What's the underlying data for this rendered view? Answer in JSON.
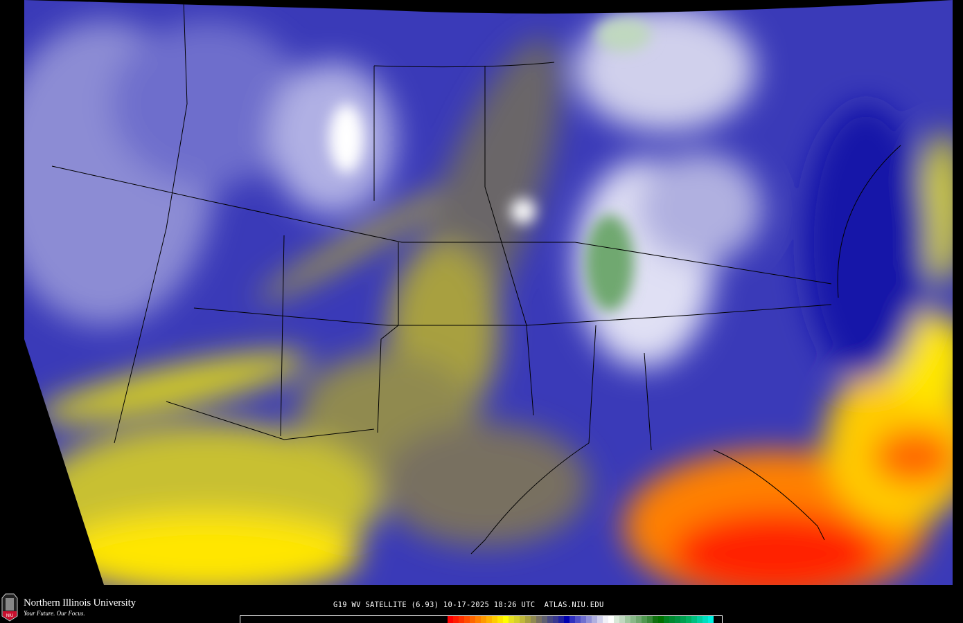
{
  "branding": {
    "university": "Northern Illinois University",
    "tagline": "Your Future. Our Focus.",
    "logo_text": "NIU"
  },
  "caption": "G19 WV SATELLITE (6.93) 10-17-2025 18:26 UTC  ATLAS.NIU.EDU",
  "colors": {
    "background": "#000000",
    "base_blue": "#3a3ab8",
    "dry_yellow": "#d8d020",
    "very_dry_red": "#ff2000",
    "cloud_white": "#f0f0ff",
    "cold_green": "#50a050"
  },
  "colorbar": [
    "#ff0000",
    "#ff1a00",
    "#ff3300",
    "#ff4d00",
    "#ff6600",
    "#ff8000",
    "#ff9900",
    "#ffb300",
    "#ffcc00",
    "#ffe600",
    "#ffff00",
    "#e6e020",
    "#d4d02a",
    "#c0b838",
    "#a8a040",
    "#908a50",
    "#787060",
    "#606070",
    "#484880",
    "#383890",
    "#2020a0",
    "#0000b0",
    "#3030c0",
    "#5050c8",
    "#7070d0",
    "#9090d8",
    "#b0b0e0",
    "#d0d0ec",
    "#f0f0f8",
    "#ffffff",
    "#d8e8d8",
    "#c0d8c0",
    "#a0c8a0",
    "#88b888",
    "#70a870",
    "#509850",
    "#388838",
    "#107010",
    "#007000",
    "#008020",
    "#008830",
    "#009040",
    "#00a050",
    "#00b060",
    "#00c080",
    "#00d0a0",
    "#00e0c0",
    "#00f0e0"
  ]
}
